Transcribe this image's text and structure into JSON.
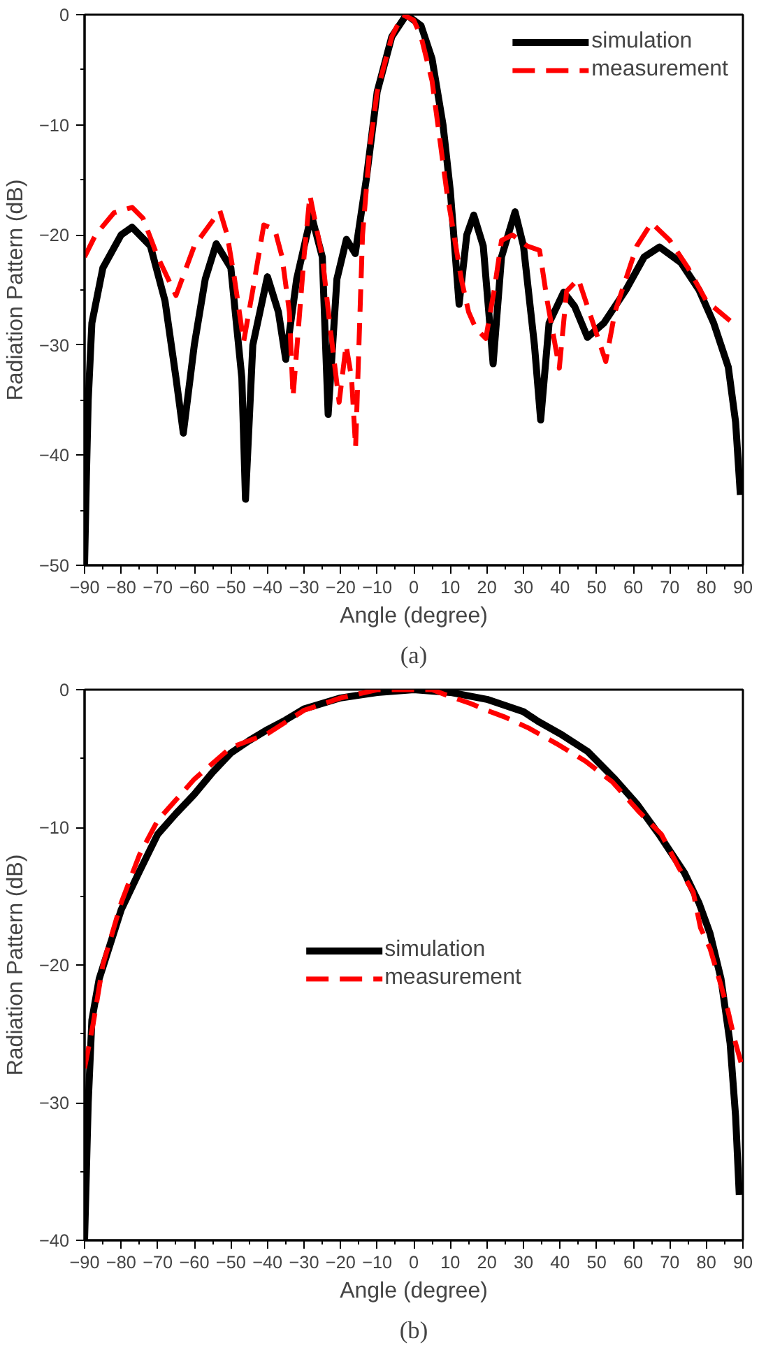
{
  "chart_data": [
    {
      "type": "line",
      "xlabel": "Angle (degree)",
      "ylabel": "Radiation Pattern (dB)",
      "annotations": [
        "(a)"
      ],
      "xlim": [
        -90,
        90
      ],
      "ylim": [
        -50,
        0
      ],
      "xticks": [
        -90,
        -80,
        -70,
        -60,
        -50,
        -40,
        -30,
        -20,
        -10,
        0,
        10,
        20,
        30,
        40,
        50,
        60,
        70,
        80,
        90
      ],
      "yticks": [
        -50,
        -40,
        -30,
        -20,
        -10,
        0
      ],
      "grid": false,
      "legend": "top right",
      "series": [
        {
          "name": "simulation",
          "color": "#000000",
          "line_style": "solid",
          "x": [
            -90,
            -89.5,
            -89,
            -88,
            -85,
            -80,
            -77,
            -72,
            -68,
            -65,
            -63,
            -60,
            -57,
            -54,
            -50,
            -47,
            -46,
            -44,
            -40,
            -37,
            -35,
            -32,
            -28,
            -25,
            -23.4,
            -21,
            -18.4,
            -16,
            -13,
            -10,
            -6,
            -2,
            2,
            5,
            8,
            10,
            12.4,
            14.5,
            16.4,
            19,
            21.7,
            24,
            27.7,
            30,
            33,
            34.7,
            37,
            41,
            44,
            47.5,
            52,
            58,
            63,
            67.2,
            73,
            78,
            82,
            86,
            88,
            89.3
          ],
          "values": [
            -50,
            -42,
            -35,
            -28,
            -23,
            -20,
            -19.3,
            -21,
            -26,
            -33,
            -38,
            -30,
            -24,
            -20.8,
            -23,
            -33,
            -44,
            -30,
            -23.8,
            -27,
            -31.3,
            -24,
            -18.2,
            -22,
            -36.3,
            -24,
            -20.4,
            -21.7,
            -15,
            -7,
            -2,
            0,
            -1,
            -4,
            -10,
            -16,
            -26.3,
            -20,
            -18.2,
            -21,
            -31.7,
            -22,
            -17.9,
            -21,
            -30,
            -36.8,
            -28,
            -25.2,
            -26.5,
            -29.3,
            -28,
            -25,
            -22,
            -21.1,
            -22.5,
            -25,
            -28,
            -32,
            -37,
            -43.6
          ]
        },
        {
          "name": "measurement",
          "color": "#ff0000",
          "line_style": "dashed",
          "x": [
            -90,
            -87,
            -82,
            -77,
            -74,
            -70,
            -65,
            -60,
            -53,
            -51,
            -49,
            -46.5,
            -44,
            -41,
            -38,
            -36,
            -34,
            -33,
            -30,
            -28.4,
            -25,
            -23,
            -20.4,
            -18.5,
            -17,
            -15.9,
            -14,
            -12,
            -10,
            -6,
            -3,
            0,
            2,
            5,
            7,
            9,
            11,
            13,
            15,
            17,
            19.7,
            22,
            24,
            27,
            31,
            34.4,
            36.5,
            39.8,
            41.8,
            45,
            48,
            52.5,
            55,
            58,
            61,
            65,
            70,
            75,
            80,
            86.5
          ],
          "values": [
            -22,
            -20,
            -18,
            -17.5,
            -18.5,
            -22,
            -25.5,
            -21,
            -17.8,
            -20,
            -24,
            -29.7,
            -25,
            -19.1,
            -19.5,
            -22,
            -27,
            -34.7,
            -22,
            -16.4,
            -22,
            -28,
            -35.2,
            -30,
            -33,
            -39.3,
            -20,
            -12,
            -7,
            -2,
            0,
            -0.5,
            -2,
            -6,
            -11,
            -16,
            -20,
            -24,
            -27,
            -28.5,
            -29.4,
            -25,
            -20.5,
            -20,
            -21,
            -21.4,
            -26,
            -32.1,
            -25.1,
            -24,
            -27,
            -31.5,
            -27,
            -24,
            -21,
            -18.9,
            -20.5,
            -23,
            -26,
            -27.8
          ]
        }
      ]
    },
    {
      "type": "line",
      "xlabel": "Angle (degree)",
      "ylabel": "Radiation Pattern (dB)",
      "annotations": [
        "(b)"
      ],
      "xlim": [
        -90,
        90
      ],
      "ylim": [
        -40,
        0
      ],
      "xticks": [
        -90,
        -80,
        -70,
        -60,
        -50,
        -40,
        -30,
        -20,
        -10,
        0,
        10,
        20,
        30,
        40,
        50,
        60,
        70,
        80,
        90
      ],
      "yticks": [
        -40,
        -30,
        -20,
        -10,
        0
      ],
      "grid": false,
      "legend": "center",
      "series": [
        {
          "name": "simulation",
          "color": "#000000",
          "line_style": "solid",
          "x": [
            -90,
            -89,
            -88,
            -86,
            -83.6,
            -80,
            -75,
            -70,
            -65,
            -60,
            -55,
            -50,
            -45,
            -40,
            -35,
            -30,
            -20,
            -10,
            0,
            10,
            20,
            30,
            34,
            40,
            47.6,
            55,
            61,
            67,
            74,
            78,
            81,
            84,
            86.5,
            88,
            89
          ],
          "values": [
            -40,
            -30,
            -24,
            -21,
            -19,
            -16,
            -13.2,
            -10.5,
            -9,
            -7.6,
            -6,
            -4.6,
            -3.7,
            -2.9,
            -2.2,
            -1.4,
            -0.6,
            -0.2,
            0,
            -0.2,
            -0.7,
            -1.6,
            -2.3,
            -3.2,
            -4.5,
            -6.5,
            -8.3,
            -10.5,
            -13.3,
            -15.5,
            -17.7,
            -21,
            -25.7,
            -31,
            -36.7
          ]
        },
        {
          "name": "measurement",
          "color": "#ff0000",
          "line_style": "dashed",
          "x": [
            -90,
            -87.6,
            -85,
            -80,
            -75,
            -70,
            -65,
            -60,
            -50,
            -40,
            -30,
            -20,
            -10,
            0,
            5,
            10,
            15.5,
            20,
            25,
            31.5,
            38.9,
            47,
            54.3,
            61.7,
            67.7,
            72.4,
            76.4,
            78.4,
            81,
            83.8,
            85.8,
            87.8,
            89.8
          ],
          "values": [
            -27.5,
            -24.2,
            -20,
            -15.5,
            -12,
            -9.5,
            -8,
            -6.5,
            -4.2,
            -3.2,
            -1.5,
            -0.6,
            0,
            0,
            0,
            -0.5,
            -1,
            -1.5,
            -2,
            -2.8,
            -3.9,
            -5.2,
            -6.7,
            -8.9,
            -10.5,
            -12.9,
            -14.7,
            -17.3,
            -18.8,
            -21.3,
            -23.2,
            -25.5,
            -27.4
          ]
        }
      ]
    }
  ]
}
